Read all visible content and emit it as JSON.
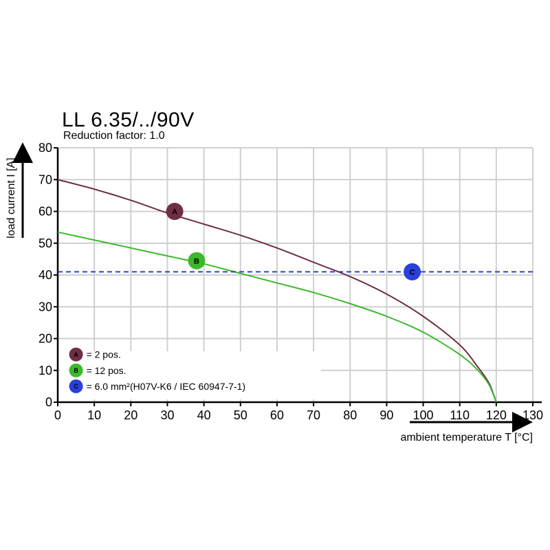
{
  "chart_data": {
    "type": "line",
    "title": "LL 6.35/../90V",
    "subtitle": "Reduction factor: 1.0",
    "xlabel": "ambient temperature T [°C]",
    "ylabel": "load current I [A]",
    "xlim": [
      0,
      130
    ],
    "ylim": [
      0,
      80
    ],
    "xticks": [
      "0",
      "10",
      "20",
      "30",
      "40",
      "50",
      "60",
      "70",
      "80",
      "90",
      "100",
      "110",
      "120",
      "130"
    ],
    "yticks": [
      "0",
      "10",
      "20",
      "30",
      "40",
      "50",
      "60",
      "70",
      "80"
    ],
    "grid": true,
    "colors": {
      "A": "#6e2e45",
      "B": "#3db82c",
      "C": "#2a3fdc"
    },
    "series": [
      {
        "key": "A",
        "marker_label": "A",
        "marker_at": [
          32,
          60
        ],
        "points": [
          [
            0,
            70
          ],
          [
            10,
            67
          ],
          [
            20,
            63.5
          ],
          [
            30,
            59.5
          ],
          [
            40,
            56
          ],
          [
            50,
            52.5
          ],
          [
            60,
            48.5
          ],
          [
            70,
            44
          ],
          [
            80,
            39.5
          ],
          [
            90,
            34
          ],
          [
            100,
            27
          ],
          [
            110,
            18
          ],
          [
            115,
            11
          ],
          [
            118,
            6
          ],
          [
            120,
            0
          ]
        ]
      },
      {
        "key": "B",
        "marker_label": "B",
        "marker_at": [
          38,
          44.5
        ],
        "points": [
          [
            0,
            53.5
          ],
          [
            10,
            51
          ],
          [
            20,
            48.5
          ],
          [
            30,
            46
          ],
          [
            40,
            43.5
          ],
          [
            50,
            40.5
          ],
          [
            60,
            37.5
          ],
          [
            70,
            34.5
          ],
          [
            80,
            31
          ],
          [
            90,
            27
          ],
          [
            100,
            22
          ],
          [
            110,
            15
          ],
          [
            115,
            10
          ],
          [
            118,
            5.5
          ],
          [
            120,
            0
          ]
        ]
      },
      {
        "key": "C",
        "marker_label": "C",
        "marker_at": [
          97,
          41
        ],
        "dashed": true,
        "y": 41
      }
    ],
    "legend": {
      "placement": "bottom-left",
      "entries": [
        {
          "marker": "A",
          "text": "= 2 pos."
        },
        {
          "marker": "B",
          "text": "= 12 pos."
        },
        {
          "marker": "C",
          "text": "= 6.0 mm²(H07V-K6 / IEC 60947-7-1)"
        }
      ]
    }
  }
}
